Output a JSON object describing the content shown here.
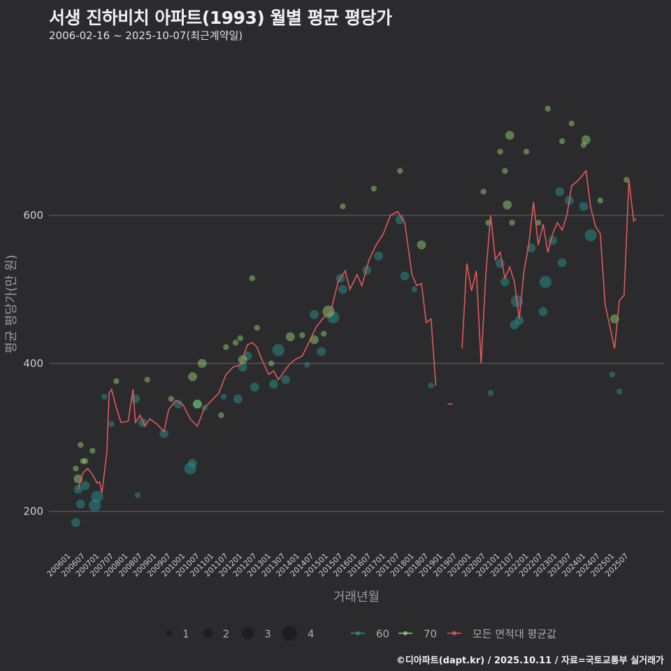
{
  "header": {
    "title": "서생 진하비치 아파트(1993) 월별 평균 평당가",
    "subtitle": "2006-02-16 ~ 2025-10-07(최근계약일)"
  },
  "caption": "©디아파트(dapt.kr) / 2025.10.11 / 자료=국토교통부 실거래가",
  "colors": {
    "background": "#2b2b2d",
    "grid": "#5a5a5a",
    "series_60": "#2a8f8f",
    "series_70": "#8fcf6f",
    "avg_line": "#e05a5a"
  },
  "chart_data": {
    "type": "scatter",
    "title": "서생 진하비치 아파트(1993) 월별 평균 평당가",
    "xlabel": "거래년월",
    "ylabel": "평균 평당가(만 원)",
    "ylim": [
      145,
      820
    ],
    "y_ticks": [
      200,
      400,
      600
    ],
    "x_tick_labels": [
      "200601",
      "200607",
      "200701",
      "200707",
      "200801",
      "200807",
      "200901",
      "200907",
      "201001",
      "201007",
      "201101",
      "201107",
      "201201",
      "201207",
      "201301",
      "201307",
      "201401",
      "201407",
      "201501",
      "201507",
      "201601",
      "201607",
      "201701",
      "201707",
      "201801",
      "201807",
      "201901",
      "201907",
      "202001",
      "202007",
      "202101",
      "202107",
      "202201",
      "202207",
      "202301",
      "202307",
      "202401",
      "202407",
      "202501",
      "202507"
    ],
    "legend": {
      "size_title": "",
      "sizes": [
        1,
        2,
        3,
        4
      ],
      "series": [
        "60",
        "70",
        "모든 면적대 평균값"
      ]
    },
    "series": [
      {
        "name": "60",
        "points": [
          {
            "m": "2006-03",
            "v": 185,
            "n": 2
          },
          {
            "m": "2006-04",
            "v": 230,
            "n": 2
          },
          {
            "m": "2006-05",
            "v": 210,
            "n": 2
          },
          {
            "m": "2006-07",
            "v": 235,
            "n": 2
          },
          {
            "m": "2006-11",
            "v": 208,
            "n": 3
          },
          {
            "m": "2006-12",
            "v": 220,
            "n": 3
          },
          {
            "m": "2007-03",
            "v": 355,
            "n": 1
          },
          {
            "m": "2007-06",
            "v": 318,
            "n": 1
          },
          {
            "m": "2008-04",
            "v": 352,
            "n": 2
          },
          {
            "m": "2008-05",
            "v": 222,
            "n": 1
          },
          {
            "m": "2008-07",
            "v": 320,
            "n": 2
          },
          {
            "m": "2009-04",
            "v": 305,
            "n": 2
          },
          {
            "m": "2009-10",
            "v": 345,
            "n": 2
          },
          {
            "m": "2010-03",
            "v": 258,
            "n": 3
          },
          {
            "m": "2010-04",
            "v": 265,
            "n": 2
          },
          {
            "m": "2010-06",
            "v": 345,
            "n": 2
          },
          {
            "m": "2010-09",
            "v": 340,
            "n": 1
          },
          {
            "m": "2011-05",
            "v": 355,
            "n": 1
          },
          {
            "m": "2011-11",
            "v": 352,
            "n": 2
          },
          {
            "m": "2012-01",
            "v": 395,
            "n": 2
          },
          {
            "m": "2012-03",
            "v": 410,
            "n": 2
          },
          {
            "m": "2012-06",
            "v": 368,
            "n": 2
          },
          {
            "m": "2013-02",
            "v": 372,
            "n": 2
          },
          {
            "m": "2013-04",
            "v": 418,
            "n": 3
          },
          {
            "m": "2013-07",
            "v": 378,
            "n": 2
          },
          {
            "m": "2014-04",
            "v": 398,
            "n": 1
          },
          {
            "m": "2014-07",
            "v": 466,
            "n": 2
          },
          {
            "m": "2014-10",
            "v": 416,
            "n": 2
          },
          {
            "m": "2015-03",
            "v": 462,
            "n": 3
          },
          {
            "m": "2015-06",
            "v": 515,
            "n": 2
          },
          {
            "m": "2015-07",
            "v": 500,
            "n": 2
          },
          {
            "m": "2016-05",
            "v": 526,
            "n": 2
          },
          {
            "m": "2016-10",
            "v": 545,
            "n": 2
          },
          {
            "m": "2017-07",
            "v": 594,
            "n": 2
          },
          {
            "m": "2017-09",
            "v": 518,
            "n": 2
          },
          {
            "m": "2018-01",
            "v": 500,
            "n": 1
          },
          {
            "m": "2018-08",
            "v": 370,
            "n": 1
          },
          {
            "m": "2020-09",
            "v": 360,
            "n": 1
          },
          {
            "m": "2021-01",
            "v": 535,
            "n": 2
          },
          {
            "m": "2021-03",
            "v": 510,
            "n": 2
          },
          {
            "m": "2021-07",
            "v": 452,
            "n": 2
          },
          {
            "m": "2021-08",
            "v": 484,
            "n": 3
          },
          {
            "m": "2021-09",
            "v": 458,
            "n": 2
          },
          {
            "m": "2022-02",
            "v": 556,
            "n": 2
          },
          {
            "m": "2022-07",
            "v": 470,
            "n": 2
          },
          {
            "m": "2022-08",
            "v": 510,
            "n": 3
          },
          {
            "m": "2022-11",
            "v": 566,
            "n": 2
          },
          {
            "m": "2023-02",
            "v": 632,
            "n": 2
          },
          {
            "m": "2023-03",
            "v": 536,
            "n": 2
          },
          {
            "m": "2023-06",
            "v": 620,
            "n": 2
          },
          {
            "m": "2023-12",
            "v": 612,
            "n": 2
          },
          {
            "m": "2024-03",
            "v": 573,
            "n": 3
          },
          {
            "m": "2024-12",
            "v": 385,
            "n": 1
          },
          {
            "m": "2025-03",
            "v": 362,
            "n": 1
          }
        ]
      },
      {
        "name": "70",
        "points": [
          {
            "m": "2006-04",
            "v": 244,
            "n": 2
          },
          {
            "m": "2006-03",
            "v": 258,
            "n": 1
          },
          {
            "m": "2006-05",
            "v": 290,
            "n": 1
          },
          {
            "m": "2006-06",
            "v": 268,
            "n": 1
          },
          {
            "m": "2006-07",
            "v": 268,
            "n": 1
          },
          {
            "m": "2006-10",
            "v": 282,
            "n": 1
          },
          {
            "m": "2007-08",
            "v": 376,
            "n": 1
          },
          {
            "m": "2008-09",
            "v": 378,
            "n": 1
          },
          {
            "m": "2009-07",
            "v": 352,
            "n": 1
          },
          {
            "m": "2010-04",
            "v": 382,
            "n": 2
          },
          {
            "m": "2010-06",
            "v": 345,
            "n": 2
          },
          {
            "m": "2010-08",
            "v": 400,
            "n": 2
          },
          {
            "m": "2011-04",
            "v": 330,
            "n": 1
          },
          {
            "m": "2011-06",
            "v": 422,
            "n": 1
          },
          {
            "m": "2011-10",
            "v": 428,
            "n": 1
          },
          {
            "m": "2011-12",
            "v": 434,
            "n": 1
          },
          {
            "m": "2012-01",
            "v": 405,
            "n": 2
          },
          {
            "m": "2012-05",
            "v": 515,
            "n": 1
          },
          {
            "m": "2012-07",
            "v": 448,
            "n": 1
          },
          {
            "m": "2013-01",
            "v": 400,
            "n": 1
          },
          {
            "m": "2013-09",
            "v": 436,
            "n": 2
          },
          {
            "m": "2014-02",
            "v": 438,
            "n": 1
          },
          {
            "m": "2014-07",
            "v": 432,
            "n": 2
          },
          {
            "m": "2014-11",
            "v": 440,
            "n": 1
          },
          {
            "m": "2015-01",
            "v": 470,
            "n": 3
          },
          {
            "m": "2015-07",
            "v": 612,
            "n": 1
          },
          {
            "m": "2016-08",
            "v": 636,
            "n": 1
          },
          {
            "m": "2017-07",
            "v": 660,
            "n": 1
          },
          {
            "m": "2018-04",
            "v": 560,
            "n": 2
          },
          {
            "m": "2020-06",
            "v": 632,
            "n": 1
          },
          {
            "m": "2020-08",
            "v": 590,
            "n": 1
          },
          {
            "m": "2021-01",
            "v": 686,
            "n": 1
          },
          {
            "m": "2021-03",
            "v": 660,
            "n": 1
          },
          {
            "m": "2021-04",
            "v": 614,
            "n": 2
          },
          {
            "m": "2021-05",
            "v": 708,
            "n": 2
          },
          {
            "m": "2021-06",
            "v": 590,
            "n": 1
          },
          {
            "m": "2021-12",
            "v": 686,
            "n": 1
          },
          {
            "m": "2022-05",
            "v": 590,
            "n": 1
          },
          {
            "m": "2022-09",
            "v": 744,
            "n": 1
          },
          {
            "m": "2023-03",
            "v": 700,
            "n": 1
          },
          {
            "m": "2023-07",
            "v": 724,
            "n": 1
          },
          {
            "m": "2023-12",
            "v": 695,
            "n": 1
          },
          {
            "m": "2024-01",
            "v": 702,
            "n": 2
          },
          {
            "m": "2024-07",
            "v": 620,
            "n": 1
          },
          {
            "m": "2025-01",
            "v": 460,
            "n": 2
          },
          {
            "m": "2025-06",
            "v": 648,
            "n": 1
          }
        ]
      },
      {
        "name": "모든 면적대 평균값",
        "line": [
          [
            "2006-04",
            230
          ],
          [
            "2006-06",
            252
          ],
          [
            "2006-08",
            258
          ],
          [
            "2006-10",
            250
          ],
          [
            "2006-12",
            238
          ],
          [
            "2007-01",
            240
          ],
          [
            "2007-02",
            225
          ],
          [
            "2007-04",
            280
          ],
          [
            "2007-05",
            360
          ],
          [
            "2007-06",
            365
          ],
          [
            "2007-08",
            340
          ],
          [
            "2007-10",
            320
          ],
          [
            "2008-01",
            322
          ],
          [
            "2008-03",
            365
          ],
          [
            "2008-04",
            320
          ],
          [
            "2008-06",
            330
          ],
          [
            "2008-08",
            315
          ],
          [
            "2008-10",
            325
          ],
          [
            "2009-01",
            318
          ],
          [
            "2009-04",
            308
          ],
          [
            "2009-06",
            338
          ],
          [
            "2009-09",
            350
          ],
          [
            "2009-12",
            344
          ],
          [
            "2010-03",
            325
          ],
          [
            "2010-06",
            315
          ],
          [
            "2010-09",
            340
          ],
          [
            "2010-12",
            350
          ],
          [
            "2011-03",
            360
          ],
          [
            "2011-06",
            385
          ],
          [
            "2011-09",
            395
          ],
          [
            "2011-12",
            398
          ],
          [
            "2012-03",
            425
          ],
          [
            "2012-05",
            428
          ],
          [
            "2012-07",
            422
          ],
          [
            "2012-09",
            405
          ],
          [
            "2012-12",
            385
          ],
          [
            "2013-02",
            390
          ],
          [
            "2013-04",
            378
          ],
          [
            "2013-07",
            392
          ],
          [
            "2013-09",
            400
          ],
          [
            "2013-11",
            405
          ],
          [
            "2014-02",
            410
          ],
          [
            "2014-05",
            430
          ],
          [
            "2014-08",
            450
          ],
          [
            "2014-11",
            462
          ],
          [
            "2015-02",
            470
          ],
          [
            "2015-05",
            510
          ],
          [
            "2015-08",
            525
          ],
          [
            "2015-10",
            500
          ],
          [
            "2016-01",
            520
          ],
          [
            "2016-03",
            505
          ],
          [
            "2016-06",
            540
          ],
          [
            "2016-09",
            560
          ],
          [
            "2016-12",
            575
          ],
          [
            "2017-03",
            600
          ],
          [
            "2017-06",
            605
          ],
          [
            "2017-09",
            590
          ],
          [
            "2017-12",
            520
          ],
          [
            "2018-02",
            505
          ],
          [
            "2018-04",
            508
          ],
          [
            "2018-06",
            455
          ],
          [
            "2018-08",
            460
          ],
          [
            "2018-10",
            370
          ],
          [
            "2019-03",
            345
          ],
          [
            "2019-05",
            345
          ],
          [
            "2019-09",
            420
          ],
          [
            "2019-11",
            535
          ],
          [
            "2020-01",
            498
          ],
          [
            "2020-03",
            525
          ],
          [
            "2020-05",
            400
          ],
          [
            "2020-07",
            520
          ],
          [
            "2020-09",
            600
          ],
          [
            "2020-11",
            540
          ],
          [
            "2021-01",
            550
          ],
          [
            "2021-03",
            515
          ],
          [
            "2021-05",
            530
          ],
          [
            "2021-07",
            510
          ],
          [
            "2021-09",
            460
          ],
          [
            "2021-11",
            525
          ],
          [
            "2022-01",
            560
          ],
          [
            "2022-03",
            618
          ],
          [
            "2022-05",
            560
          ],
          [
            "2022-07",
            588
          ],
          [
            "2022-09",
            550
          ],
          [
            "2022-11",
            575
          ],
          [
            "2023-01",
            590
          ],
          [
            "2023-03",
            580
          ],
          [
            "2023-05",
            600
          ],
          [
            "2023-07",
            640
          ],
          [
            "2023-09",
            645
          ],
          [
            "2023-11",
            652
          ],
          [
            "2024-01",
            660
          ],
          [
            "2024-03",
            610
          ],
          [
            "2024-05",
            585
          ],
          [
            "2024-07",
            575
          ],
          [
            "2024-09",
            480
          ],
          [
            "2024-11",
            450
          ],
          [
            "2025-01",
            420
          ],
          [
            "2025-03",
            485
          ],
          [
            "2025-05",
            492
          ],
          [
            "2025-07",
            648
          ],
          [
            "2025-09",
            592
          ],
          [
            "2025-10",
            596
          ]
        ]
      }
    ]
  }
}
